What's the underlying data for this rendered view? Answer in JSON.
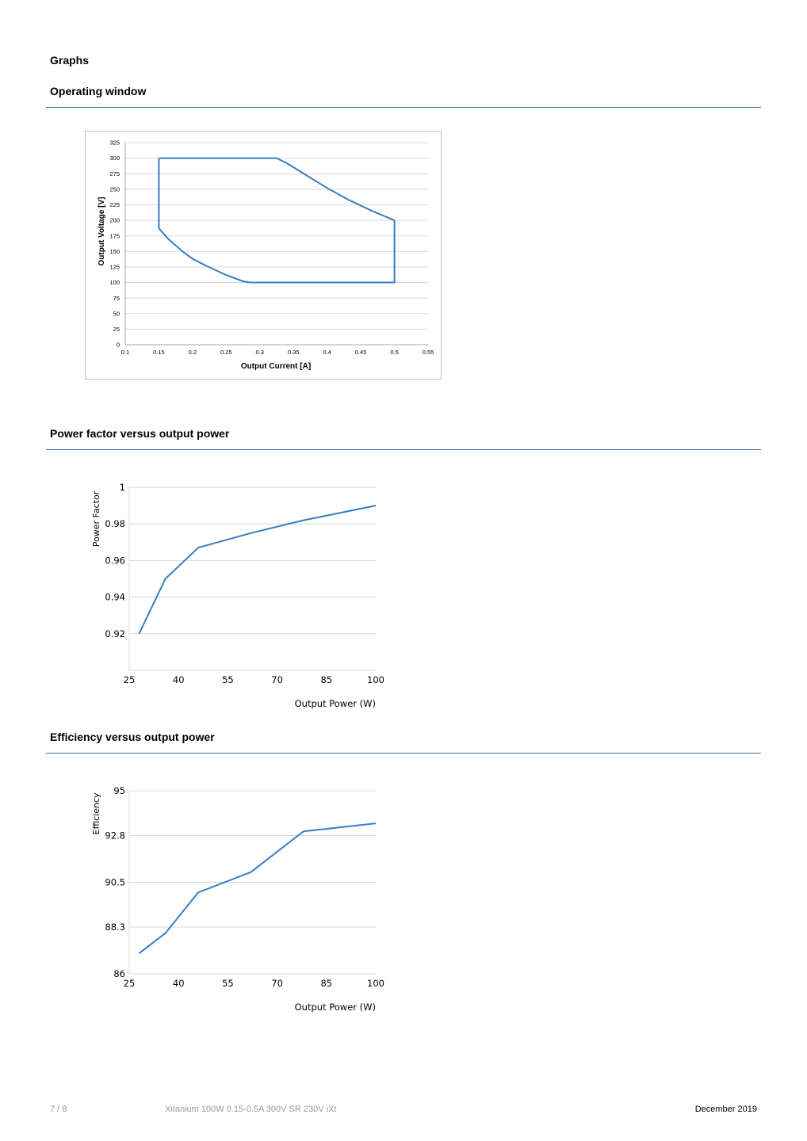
{
  "page": {
    "heading": "Graphs"
  },
  "sections": [
    {
      "title": "Operating window"
    },
    {
      "title": "Power factor versus output power"
    },
    {
      "title": "Efficiency versus output power"
    }
  ],
  "footer": {
    "page_number": "7 / 8",
    "product": "Xitanium 100W 0.15-0.5A 300V SR 230V iXt",
    "date": "December 2019"
  },
  "colors": {
    "line": "#3a7dc0",
    "rule": "#2f6fa8",
    "grid": "#d9d9d9"
  },
  "chart_data": [
    {
      "type": "line",
      "title": "",
      "xlabel": "Output Current [A]",
      "ylabel": "Output Voltage  [V]",
      "xlim": [
        0.1,
        0.55
      ],
      "ylim": [
        0,
        325
      ],
      "x_ticks": [
        "0.1",
        "0.15",
        "0.2",
        "0.25",
        "0.3",
        "0.35",
        "0.4",
        "0.45",
        "0.5",
        "0.55"
      ],
      "y_ticks": [
        "0",
        "25",
        "50",
        "75",
        "100",
        "125",
        "150",
        "175",
        "200",
        "225",
        "250",
        "275",
        "300",
        "325"
      ],
      "grid": "horizontal",
      "series": [
        {
          "x": [
            0.15,
            0.325,
            0.34,
            0.37,
            0.4,
            0.43,
            0.467,
            0.5,
            0.5,
            0.285,
            0.275,
            0.25,
            0.22,
            0.2,
            0.185,
            0.165,
            0.15,
            0.15
          ],
          "y": [
            300,
            300,
            292,
            272,
            252,
            234,
            215,
            200,
            100,
            100,
            102,
            112,
            127,
            138,
            150,
            169,
            187,
            300
          ]
        }
      ]
    },
    {
      "type": "line",
      "title": "",
      "xlabel": "Output Power (W)",
      "ylabel": "Power Factor",
      "xlim": [
        25,
        100
      ],
      "ylim": [
        0.9,
        1
      ],
      "x_ticks": [
        "25",
        "40",
        "55",
        "70",
        "85",
        "100"
      ],
      "y_ticks": [
        "0.92",
        "0.94",
        "0.96",
        "0.98",
        "1"
      ],
      "grid": "horizontal",
      "series": [
        {
          "x": [
            28,
            36,
            46,
            62,
            78,
            100
          ],
          "y": [
            0.92,
            0.95,
            0.967,
            0.975,
            0.982,
            0.99
          ]
        }
      ]
    },
    {
      "type": "line",
      "title": "",
      "xlabel": "Output Power (W)",
      "ylabel": "Efficiency",
      "xlim": [
        25,
        100
      ],
      "ylim": [
        86,
        95
      ],
      "x_ticks": [
        "25",
        "40",
        "55",
        "70",
        "85",
        "100"
      ],
      "y_ticks": [
        "86",
        "88.3",
        "90.5",
        "92.8",
        "95"
      ],
      "grid": "horizontal",
      "series": [
        {
          "x": [
            28,
            36,
            46,
            62,
            78,
            100
          ],
          "y": [
            87,
            88,
            90,
            91,
            93,
            93.4
          ]
        }
      ]
    }
  ]
}
